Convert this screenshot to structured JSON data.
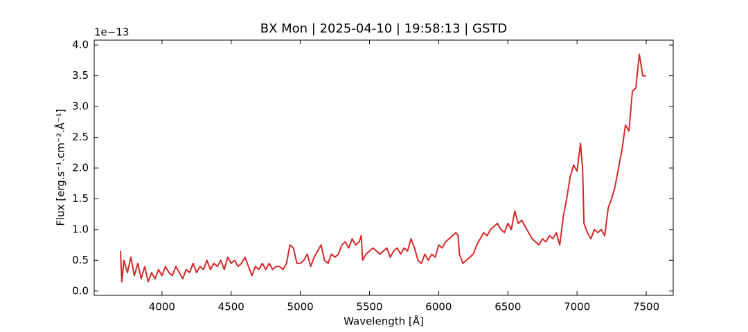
{
  "chart_data": {
    "type": "line",
    "title": "BX Mon | 2025-04-10 | 19:58:13 | GSTD",
    "x_label": "Wavelength [Å]",
    "y_label": "Flux [erg.s⁻¹.cm⁻².Å⁻¹]",
    "y_offset_text": "1e−13",
    "xlim": [
      3510,
      7695
    ],
    "ylim": [
      -0.07,
      4.08
    ],
    "xticks": [
      4000,
      4500,
      5000,
      5500,
      6000,
      6500,
      7000,
      7500
    ],
    "yticks": [
      {
        "value": 0,
        "label": "0.0"
      },
      0.5,
      {
        "value": 1,
        "label": "1.0"
      },
      1.5,
      {
        "value": 2,
        "label": "2.0"
      },
      2.5,
      {
        "value": 3,
        "label": "3.0"
      },
      3.5,
      {
        "value": 4,
        "label": "4.0"
      }
    ],
    "x": [
      3700,
      3710,
      3725,
      3750,
      3775,
      3800,
      3825,
      3850,
      3875,
      3900,
      3925,
      3950,
      3975,
      4000,
      4025,
      4050,
      4075,
      4100,
      4125,
      4150,
      4175,
      4200,
      4225,
      4250,
      4275,
      4300,
      4325,
      4350,
      4375,
      4400,
      4425,
      4450,
      4475,
      4500,
      4525,
      4550,
      4575,
      4600,
      4625,
      4650,
      4675,
      4700,
      4725,
      4750,
      4775,
      4800,
      4825,
      4850,
      4875,
      4900,
      4925,
      4950,
      4975,
      5000,
      5025,
      5050,
      5075,
      5100,
      5125,
      5150,
      5175,
      5200,
      5225,
      5250,
      5275,
      5300,
      5325,
      5350,
      5375,
      5400,
      5425,
      5440,
      5450,
      5475,
      5500,
      5525,
      5550,
      5575,
      5600,
      5625,
      5650,
      5675,
      5700,
      5725,
      5750,
      5775,
      5800,
      5825,
      5850,
      5875,
      5900,
      5925,
      5950,
      5975,
      6000,
      6025,
      6050,
      6075,
      6100,
      6125,
      6140,
      6150,
      6175,
      6200,
      6225,
      6250,
      6275,
      6300,
      6325,
      6350,
      6375,
      6400,
      6425,
      6450,
      6475,
      6500,
      6525,
      6550,
      6575,
      6600,
      6625,
      6650,
      6675,
      6700,
      6725,
      6750,
      6775,
      6800,
      6825,
      6850,
      6875,
      6900,
      6925,
      6950,
      6975,
      7000,
      7025,
      7040,
      7050,
      7075,
      7100,
      7125,
      7150,
      7175,
      7200,
      7225,
      7250,
      7275,
      7300,
      7325,
      7350,
      7375,
      7400,
      7425,
      7450,
      7475,
      7500
    ],
    "series": [
      {
        "color": "#d62728",
        "values": [
          0.65,
          0.15,
          0.5,
          0.3,
          0.55,
          0.25,
          0.45,
          0.2,
          0.4,
          0.15,
          0.3,
          0.2,
          0.35,
          0.25,
          0.4,
          0.3,
          0.25,
          0.4,
          0.3,
          0.2,
          0.35,
          0.3,
          0.45,
          0.3,
          0.4,
          0.35,
          0.5,
          0.35,
          0.45,
          0.4,
          0.5,
          0.35,
          0.55,
          0.45,
          0.5,
          0.4,
          0.45,
          0.55,
          0.4,
          0.25,
          0.4,
          0.35,
          0.45,
          0.35,
          0.45,
          0.35,
          0.4,
          0.4,
          0.35,
          0.45,
          0.75,
          0.7,
          0.45,
          0.45,
          0.5,
          0.6,
          0.4,
          0.55,
          0.65,
          0.75,
          0.5,
          0.45,
          0.6,
          0.55,
          0.6,
          0.75,
          0.8,
          0.7,
          0.85,
          0.75,
          0.8,
          0.9,
          0.5,
          0.6,
          0.65,
          0.7,
          0.65,
          0.6,
          0.65,
          0.7,
          0.55,
          0.65,
          0.7,
          0.6,
          0.7,
          0.65,
          0.85,
          0.7,
          0.5,
          0.45,
          0.6,
          0.5,
          0.6,
          0.55,
          0.75,
          0.7,
          0.8,
          0.85,
          0.9,
          0.95,
          0.9,
          0.6,
          0.45,
          0.5,
          0.55,
          0.6,
          0.75,
          0.85,
          0.95,
          0.9,
          1.0,
          1.05,
          1.1,
          1.0,
          0.95,
          1.1,
          1.0,
          1.3,
          1.1,
          1.15,
          1.05,
          0.95,
          0.85,
          0.8,
          0.75,
          0.85,
          0.8,
          0.9,
          0.85,
          0.95,
          0.75,
          1.2,
          1.5,
          1.85,
          2.05,
          1.95,
          2.4,
          2.0,
          1.1,
          0.95,
          0.85,
          1.0,
          0.95,
          1.0,
          0.9,
          1.35,
          1.5,
          1.7,
          2.0,
          2.3,
          2.7,
          2.6,
          3.25,
          3.3,
          3.85,
          3.5,
          3.5
        ]
      }
    ]
  }
}
